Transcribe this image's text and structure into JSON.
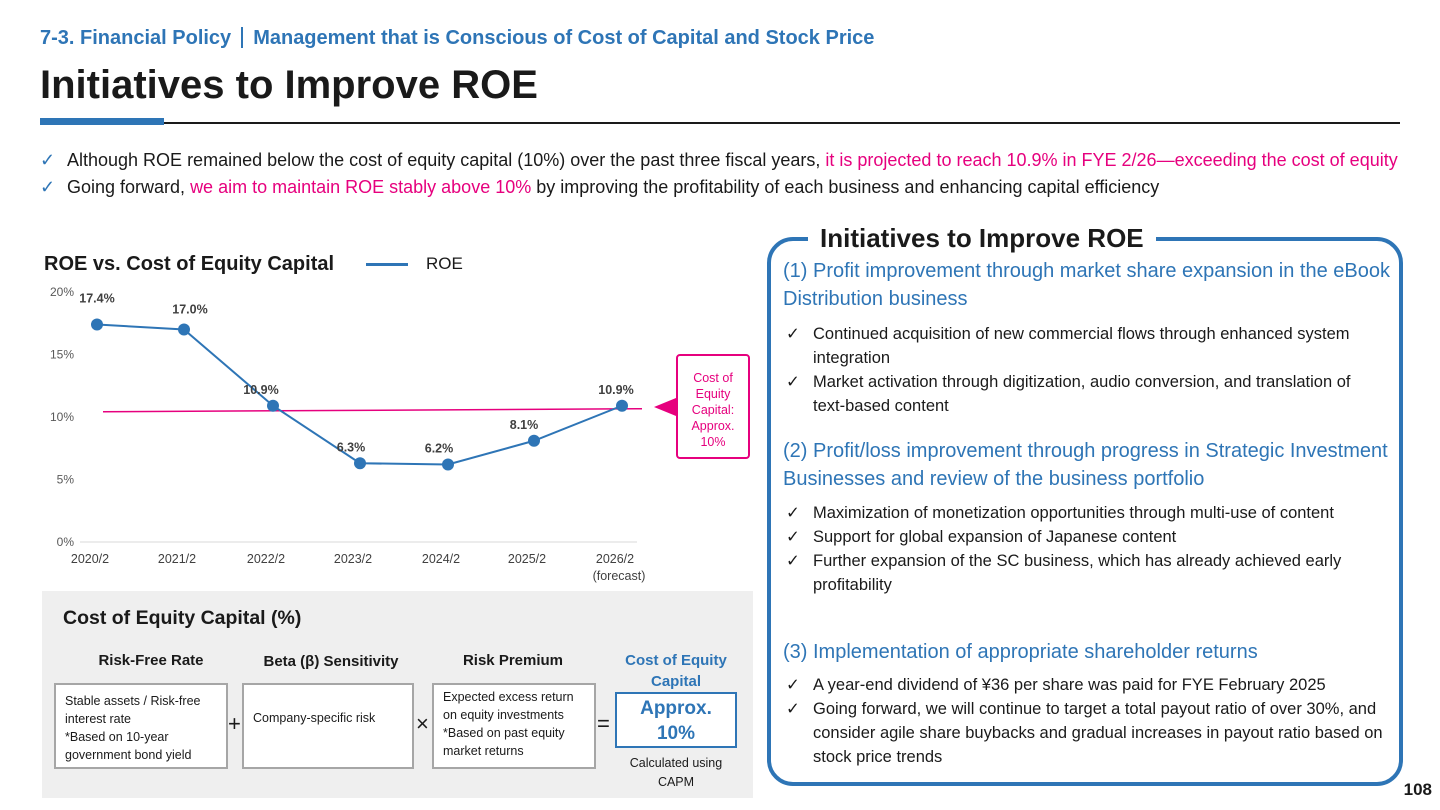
{
  "header": {
    "breadcrumb_section": "7-3. Financial Policy",
    "breadcrumb_topic": "Management that is Conscious of Cost of Capital and Stock Price",
    "title": "Initiatives to Improve ROE"
  },
  "bullets": [
    {
      "check": "✓",
      "text_plain": "Although ROE remained below the cost of equity capital (10%) over the past three fiscal years, ",
      "text_highlight": "it is projected to reach 10.9% in FYE 2/26—exceeding the cost of equity",
      "text_after": ""
    },
    {
      "check": "✓",
      "text_plain": "Going forward, ",
      "text_highlight": "we aim to maintain ROE stably above 10%",
      "text_after": " by improving the profitability of each business and enhancing capital efficiency"
    }
  ],
  "chart": {
    "title": "ROE vs. Cost of Equity Capital",
    "legend_label": "ROE",
    "cost_box": [
      "Cost of",
      "Equity",
      "Capital:",
      "Approx.",
      "10%"
    ]
  },
  "chart_data": {
    "type": "line",
    "categories": [
      "2020/2",
      "2021/2",
      "2022/2",
      "2023/2",
      "2024/2",
      "2025/2",
      "2026/2"
    ],
    "category_sublabels": [
      "",
      "",
      "",
      "",
      "",
      "",
      "(forecast)"
    ],
    "series": [
      {
        "name": "ROE",
        "values": [
          17.4,
          17.0,
          10.9,
          6.3,
          6.2,
          8.1,
          10.9
        ],
        "color": "#2e75b6"
      }
    ],
    "data_labels": [
      "17.4%",
      "17.0%",
      "10.9%",
      "6.3%",
      "6.2%",
      "8.1%",
      "10.9%"
    ],
    "reference_line": {
      "value": 10.5,
      "color": "#e6007e"
    },
    "yticks": [
      "0%",
      "5%",
      "10%",
      "15%",
      "20%"
    ],
    "ylim": [
      0,
      20
    ],
    "grid": false
  },
  "formula": {
    "title": "Cost of Equity Capital (%)",
    "col1_head": "Risk-Free Rate",
    "col2_head": "Beta (β) Sensitivity",
    "col3_head": "Risk Premium",
    "col4_head": "Cost of Equity Capital",
    "col1_text": [
      "Stable assets / Risk-free",
      "interest rate",
      "*Based on 10-year",
      "government bond yield"
    ],
    "col2_text": "Company-specific risk",
    "col3_text": [
      "Expected excess return",
      "on equity investments",
      "*Based on past equity",
      "market returns"
    ],
    "op_plus": "+",
    "op_times": "×",
    "op_equals": "=",
    "result_line1": "Approx.",
    "result_line2": "10%",
    "capm_line1": "Calculated using",
    "capm_line2": "CAPM"
  },
  "initiatives": {
    "title": "Initiatives to Improve ROE",
    "sections": [
      {
        "heading": "(1) Profit improvement through market share expansion in the eBook Distribution business",
        "items": [
          "Continued acquisition of new commercial flows through enhanced system integration",
          "Market activation through digitization, audio conversion, and translation of text-based content"
        ]
      },
      {
        "heading": "(2) Profit/loss improvement through progress in Strategic Investment Businesses and review of the business portfolio",
        "items": [
          "Maximization of monetization opportunities through multi-use of content",
          "Support for global expansion of Japanese content",
          "Further expansion of the SC business, which has already achieved early profitability"
        ]
      },
      {
        "heading": "(3) Implementation of appropriate shareholder returns",
        "items": [
          "A year-end dividend of ¥36 per share was paid for FYE February 2025",
          "Going forward, we will continue to target a total payout ratio of over 30%, and consider agile share buybacks and gradual increases in payout ratio based on stock price trends"
        ]
      }
    ]
  },
  "page_number": "108"
}
